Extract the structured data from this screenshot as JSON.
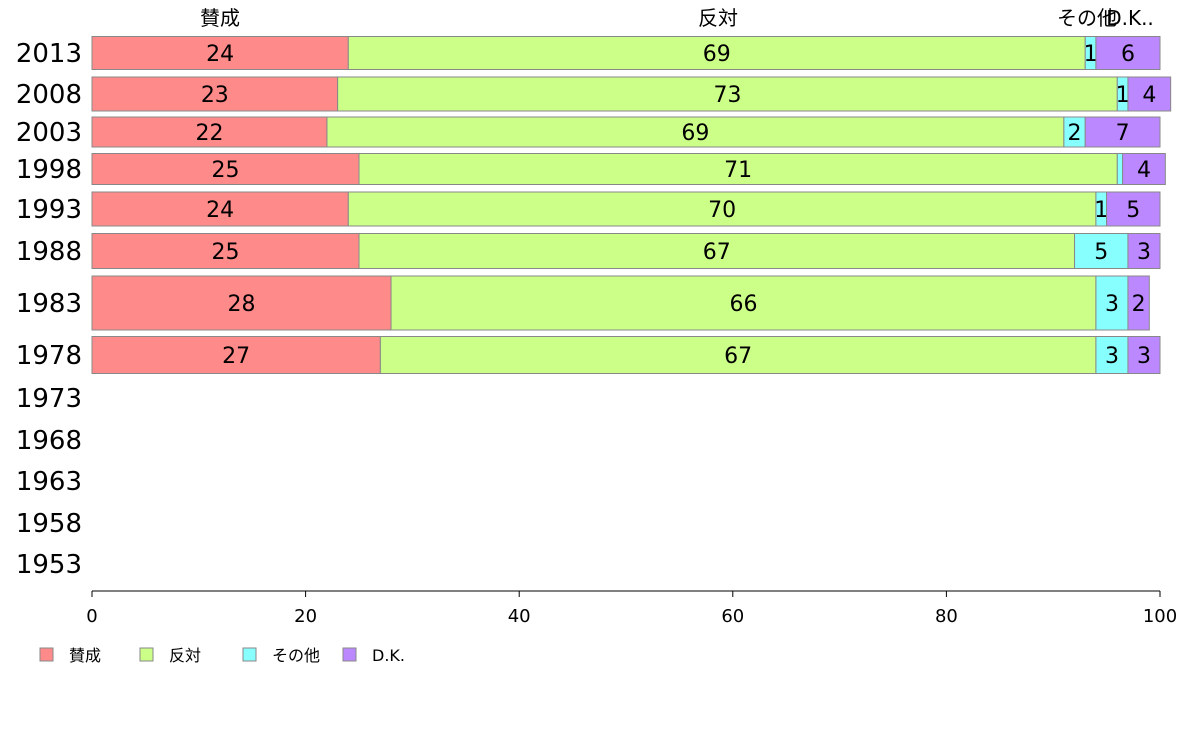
{
  "chart_data": {
    "type": "bar",
    "orientation": "horizontal",
    "stacked": true,
    "categories": [
      "2013",
      "2008",
      "2003",
      "1998",
      "1993",
      "1988",
      "1983",
      "1978",
      "1973",
      "1968",
      "1963",
      "1958",
      "1953"
    ],
    "series": [
      {
        "name": "賛成",
        "color": "#ff8a8a",
        "values": [
          24,
          23,
          22,
          25,
          24,
          25,
          28,
          27,
          null,
          null,
          null,
          null,
          null
        ]
      },
      {
        "name": "反対",
        "color": "#ccff88",
        "values": [
          69,
          73,
          69,
          71,
          70,
          67,
          66,
          67,
          null,
          null,
          null,
          null,
          null
        ]
      },
      {
        "name": "その他",
        "color": "#88ffff",
        "values": [
          1,
          1,
          2,
          0.5,
          1,
          5,
          3,
          3,
          null,
          null,
          null,
          null,
          null
        ]
      },
      {
        "name": "D.K.",
        "color": "#bb88ff",
        "values": [
          6,
          4,
          7,
          4,
          5,
          3,
          2,
          3,
          null,
          null,
          null,
          null,
          null
        ]
      }
    ],
    "data_labels": [
      [
        "24",
        "69",
        "1",
        "6"
      ],
      [
        "23",
        "73",
        "1",
        "4"
      ],
      [
        "22",
        "69",
        "2",
        "7"
      ],
      [
        "25",
        "71",
        "",
        "4"
      ],
      [
        "24",
        "70",
        "1",
        "5"
      ],
      [
        "25",
        "67",
        "5",
        "3"
      ],
      [
        "28",
        "66",
        "3",
        "2"
      ],
      [
        "27",
        "67",
        "3",
        "3"
      ]
    ],
    "top_labels": [
      "賛成",
      "反対",
      "その他",
      "D.K.."
    ],
    "xlim": [
      0,
      100
    ],
    "xticks": [
      "0",
      "20",
      "40",
      "60",
      "80",
      "100"
    ],
    "legend": {
      "position": "bottom-left",
      "entries": [
        "賛成",
        "反対",
        "その他",
        "D.K."
      ]
    },
    "grid": false
  }
}
